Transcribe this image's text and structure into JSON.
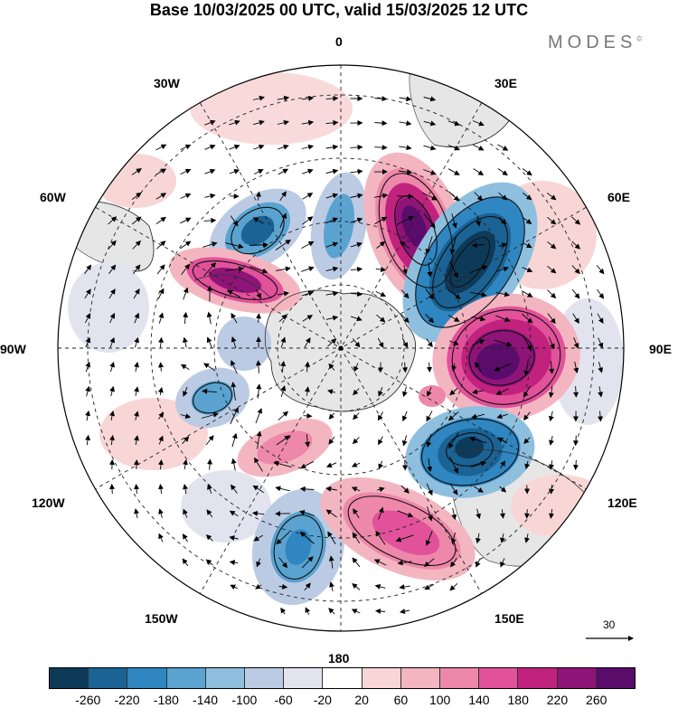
{
  "title": "Base 10/03/2025 00 UTC, valid 15/03/2025 12 UTC",
  "brand": "MODES",
  "brand_mark": "©",
  "longitude_labels": {
    "lon_0": "0",
    "lon_30e": "30E",
    "lon_60e": "60E",
    "lon_90e": "90E",
    "lon_120e": "120E",
    "lon_150e": "150E",
    "lon_180": "180",
    "lon_150w": "150W",
    "lon_120w": "120W",
    "lon_90w": "90W",
    "lon_60w": "60W",
    "lon_30w": "30W"
  },
  "reference_vector": {
    "label": "30"
  },
  "colorbar": {
    "colors": [
      "#0e3a5a",
      "#1a6394",
      "#2f86c0",
      "#5aa3d0",
      "#8fbfdf",
      "#bccbe4",
      "#e3e3f0",
      "#ffffff",
      "#f8d6d6",
      "#f3b6c0",
      "#ee88aa",
      "#e1529a",
      "#c0227e",
      "#8e1478",
      "#5a0c6a"
    ],
    "tick_labels": [
      "-260",
      "-220",
      "-180",
      "-140",
      "-100",
      "-60",
      "-20",
      "20",
      "60",
      "100",
      "140",
      "180",
      "220",
      "260"
    ]
  },
  "anomaly_features": [
    {
      "sign": "negative",
      "level": "-260",
      "color": "#1a4f78"
    },
    {
      "sign": "positive",
      "level": "260",
      "color": "#5a0c6a"
    }
  ]
}
